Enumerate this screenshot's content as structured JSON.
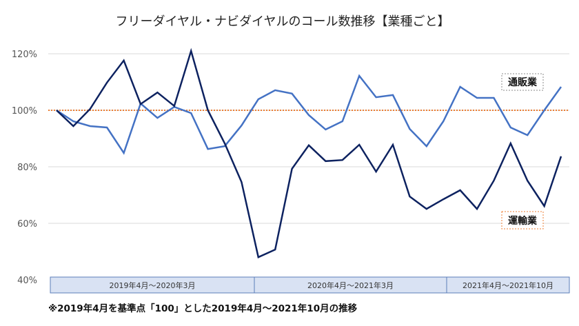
{
  "chart_data": {
    "type": "line",
    "title": "フリーダイヤル・ナビダイヤルのコール数推移【業種ごと】",
    "ylim": [
      40,
      120
    ],
    "yticks": [
      "40%",
      "60%",
      "80%",
      "100%",
      "120%"
    ],
    "ytick_values": [
      40,
      60,
      80,
      100,
      120
    ],
    "grid": true,
    "reference_line": {
      "value": 100,
      "color": "#ED7D31",
      "style": "dotted"
    },
    "x": [
      "2019-04",
      "2019-05",
      "2019-06",
      "2019-07",
      "2019-08",
      "2019-09",
      "2019-10",
      "2019-11",
      "2019-12",
      "2020-01",
      "2020-02",
      "2020-03",
      "2020-04",
      "2020-05",
      "2020-06",
      "2020-07",
      "2020-08",
      "2020-09",
      "2020-10",
      "2020-11",
      "2020-12",
      "2021-01",
      "2021-02",
      "2021-03",
      "2021-04",
      "2021-05",
      "2021-06",
      "2021-07",
      "2021-08",
      "2021-09",
      "2021-10"
    ],
    "period_bands": [
      {
        "label": "2019年4月～2020年3月",
        "from": "2019-04",
        "to": "2020-03"
      },
      {
        "label": "2020年4月～2021年3月",
        "from": "2020-04",
        "to": "2021-03"
      },
      {
        "label": "2021年4月～2021年10月",
        "from": "2021-04",
        "to": "2021-10"
      }
    ],
    "series": [
      {
        "name": "通販業",
        "color": "#4472C4",
        "values": [
          100,
          96.1,
          94.4,
          93.9,
          84.9,
          102.4,
          97.3,
          101.2,
          99,
          86.3,
          87.3,
          94.6,
          103.9,
          107.1,
          105.9,
          98.3,
          93.2,
          96.1,
          112.2,
          104.6,
          105.4,
          93.4,
          87.3,
          96.1,
          108.3,
          104.4,
          104.4,
          93.9,
          91.2,
          100,
          108.3
        ]
      },
      {
        "name": "運輸業",
        "color": "#0D2260",
        "values": [
          100,
          94.4,
          100.5,
          109.8,
          117.6,
          102.2,
          106.3,
          101.5,
          121,
          100,
          88.3,
          74.6,
          48,
          50.7,
          79.3,
          87.6,
          82,
          82.4,
          87.8,
          78.3,
          87.8,
          69.5,
          65.1,
          68.5,
          71.7,
          65.1,
          75.1,
          88.3,
          75.1,
          66.1,
          83.7
        ]
      }
    ],
    "footnote": "※2019年4月を基準点「100」とした2019年4月～2021年10月の推移"
  }
}
